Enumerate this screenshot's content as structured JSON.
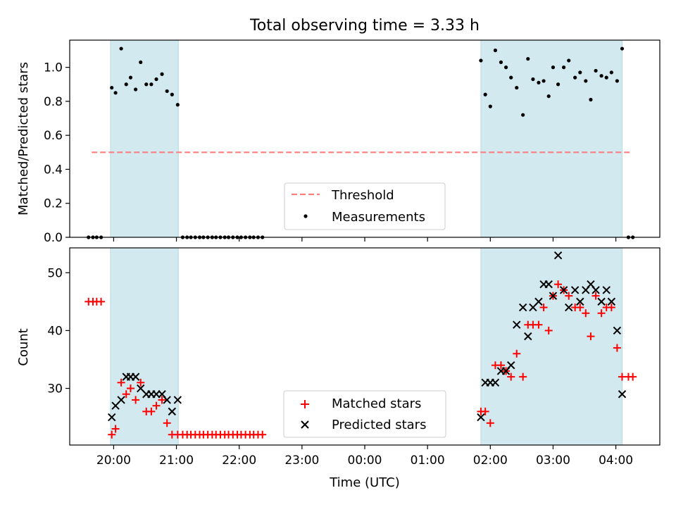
{
  "chart_data": [
    {
      "type": "scatter",
      "title": "Total observing time = 3.33 h",
      "ylabel": "Matched/Predicted stars",
      "xlim_hours": [
        19.3,
        28.7
      ],
      "ylim": [
        0,
        1.16
      ],
      "yticks": [
        0.0,
        0.2,
        0.4,
        0.6,
        0.8,
        1.0
      ],
      "ytick_labels": [
        "0.0",
        "0.2",
        "0.4",
        "0.6",
        "0.8",
        "1.0"
      ],
      "shaded_intervals_hours": [
        [
          19.95,
          21.03
        ],
        [
          25.85,
          28.1
        ]
      ],
      "shade_color": "#d2e9ef",
      "legend_position": "lower center",
      "threshold": {
        "label": "Threshold",
        "value": 0.5,
        "x_hours": [
          19.65,
          28.25
        ],
        "color": "#f88080"
      },
      "series": [
        {
          "name": "Measurements",
          "marker": "dot",
          "color": "#000000",
          "x_hours": [
            19.6,
            19.67,
            19.73,
            19.8,
            19.97,
            20.03,
            20.12,
            20.2,
            20.27,
            20.35,
            20.43,
            20.52,
            20.6,
            20.68,
            20.77,
            20.85,
            20.93,
            21.02,
            21.1,
            21.17,
            21.23,
            21.3,
            21.37,
            21.43,
            21.5,
            21.57,
            21.63,
            21.7,
            21.77,
            21.83,
            21.9,
            21.97,
            22.03,
            22.1,
            22.17,
            22.23,
            22.3,
            22.37,
            25.85,
            25.92,
            26.0,
            26.08,
            26.17,
            26.25,
            26.33,
            26.42,
            26.52,
            26.6,
            26.68,
            26.77,
            26.85,
            26.93,
            27.0,
            27.08,
            27.17,
            27.25,
            27.35,
            27.43,
            27.52,
            27.6,
            27.68,
            27.77,
            27.85,
            27.93,
            28.02,
            28.1,
            28.2,
            28.27
          ],
          "y": [
            0,
            0,
            0,
            0,
            0.88,
            0.85,
            1.11,
            0.9,
            0.94,
            0.87,
            1.03,
            0.9,
            0.9,
            0.93,
            0.96,
            0.86,
            0.84,
            0.78,
            0,
            0,
            0,
            0,
            0,
            0,
            0,
            0,
            0,
            0,
            0,
            0,
            0,
            0,
            0,
            0,
            0,
            0,
            0,
            0,
            1.04,
            0.84,
            0.77,
            1.1,
            1.03,
            1.0,
            0.94,
            0.88,
            0.72,
            1.05,
            0.93,
            0.91,
            0.92,
            0.83,
            1.0,
            0.9,
            1.0,
            1.04,
            0.94,
            0.97,
            0.92,
            0.81,
            0.98,
            0.95,
            0.94,
            0.97,
            0.92,
            1.11,
            0,
            0
          ]
        }
      ]
    },
    {
      "type": "scatter",
      "xlabel": "Time (UTC)",
      "ylabel": "Count",
      "xlim_hours": [
        19.3,
        28.7
      ],
      "ylim": [
        20.2,
        54.3
      ],
      "yticks": [
        30,
        40,
        50
      ],
      "ytick_labels": [
        "30",
        "40",
        "50"
      ],
      "xticks_hours": [
        20,
        21,
        22,
        23,
        24,
        25,
        26,
        27,
        28
      ],
      "xtick_labels": [
        "20:00",
        "21:00",
        "22:00",
        "23:00",
        "00:00",
        "01:00",
        "02:00",
        "03:00",
        "04:00"
      ],
      "shaded_intervals_hours": [
        [
          19.95,
          21.03
        ],
        [
          25.85,
          28.1
        ]
      ],
      "shade_color": "#d2e9ef",
      "legend_position": "lower center",
      "series": [
        {
          "name": "Matched stars",
          "marker": "plus",
          "color": "#ff0000",
          "x_hours": [
            19.6,
            19.67,
            19.73,
            19.8,
            19.97,
            20.03,
            20.12,
            20.2,
            20.27,
            20.35,
            20.43,
            20.52,
            20.6,
            20.68,
            20.77,
            20.85,
            20.93,
            21.02,
            21.1,
            21.17,
            21.23,
            21.3,
            21.37,
            21.43,
            21.5,
            21.57,
            21.63,
            21.7,
            21.77,
            21.83,
            21.9,
            21.97,
            22.03,
            22.1,
            22.17,
            22.23,
            22.3,
            22.37,
            25.85,
            25.92,
            26.0,
            26.08,
            26.17,
            26.25,
            26.33,
            26.42,
            26.52,
            26.6,
            26.68,
            26.77,
            26.85,
            26.93,
            27.0,
            27.08,
            27.17,
            27.25,
            27.35,
            27.43,
            27.52,
            27.6,
            27.68,
            27.77,
            27.85,
            27.93,
            28.02,
            28.1,
            28.2,
            28.27
          ],
          "y": [
            45,
            45,
            45,
            45,
            22,
            23,
            31,
            29,
            30,
            28,
            31,
            26,
            26,
            27,
            28,
            24,
            22,
            22,
            22,
            22,
            22,
            22,
            22,
            22,
            22,
            22,
            22,
            22,
            22,
            22,
            22,
            22,
            22,
            22,
            22,
            22,
            22,
            22,
            26,
            26,
            24,
            34,
            34,
            33,
            32,
            36,
            32,
            41,
            41,
            41,
            44,
            40,
            46,
            48,
            47,
            46,
            44,
            44,
            43,
            39,
            46,
            43,
            44,
            44,
            37,
            32,
            32,
            32
          ],
          "note_marker": "+"
        },
        {
          "name": "Predicted stars",
          "marker": "x",
          "color": "#000000",
          "x_hours": [
            19.97,
            20.03,
            20.12,
            20.2,
            20.27,
            20.35,
            20.43,
            20.52,
            20.6,
            20.68,
            20.77,
            20.85,
            20.93,
            21.02,
            25.85,
            25.92,
            26.0,
            26.08,
            26.17,
            26.25,
            26.33,
            26.42,
            26.52,
            26.6,
            26.68,
            26.77,
            26.85,
            26.93,
            27.0,
            27.08,
            27.17,
            27.25,
            27.35,
            27.43,
            27.52,
            27.6,
            27.68,
            27.77,
            27.85,
            27.93,
            28.02,
            28.1
          ],
          "y": [
            25,
            27,
            28,
            32,
            32,
            32,
            30,
            29,
            29,
            29,
            29,
            28,
            26,
            28,
            25,
            31,
            31,
            31,
            33,
            33,
            34,
            41,
            44,
            39,
            44,
            45,
            48,
            48,
            46,
            53,
            47,
            44,
            47,
            45,
            47,
            48,
            47,
            45,
            47,
            45,
            40,
            29
          ]
        }
      ]
    }
  ]
}
